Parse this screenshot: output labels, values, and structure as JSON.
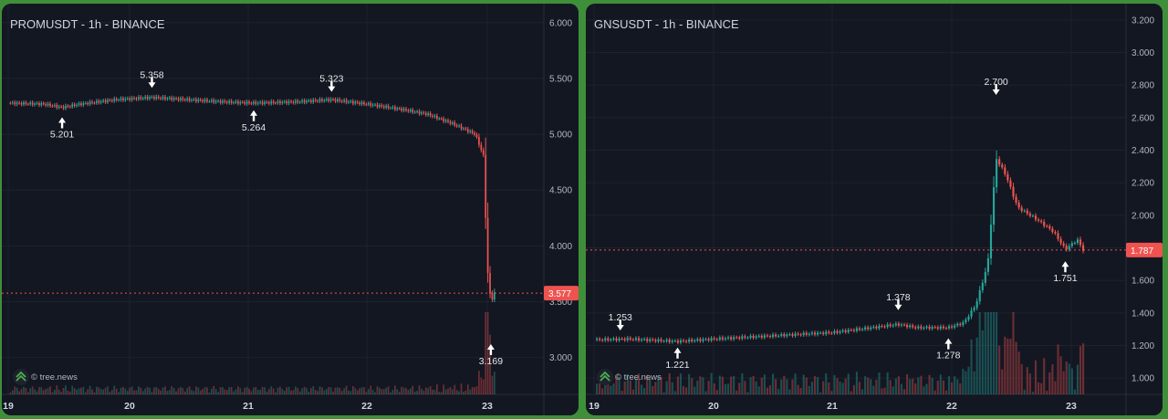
{
  "colors": {
    "up": "#26a69a",
    "down": "#ef5350",
    "background": "#131722",
    "grid": "#1f2330",
    "frame": "#3f8f3a"
  },
  "watermark": "© tree.news",
  "chart_data": [
    {
      "type": "candlestick",
      "title": "PROMUSDT - 1h - BINANCE",
      "ylim": [
        2.67,
        6.17
      ],
      "yticks": [
        "6.000",
        "5.500",
        "5.000",
        "4.500",
        "4.000",
        "3.500",
        "3.000"
      ],
      "xticks": [
        "19",
        "20",
        "21",
        "22",
        "23"
      ],
      "current_price": "3.577",
      "annotations": [
        {
          "text": "5.358",
          "price": 5.358,
          "dir": "high",
          "day": 20.2
        },
        {
          "text": "5.201",
          "price": 5.201,
          "dir": "low",
          "day": 19.45
        },
        {
          "text": "5.264",
          "price": 5.264,
          "dir": "low",
          "day": 21.05
        },
        {
          "text": "5.323",
          "price": 5.323,
          "dir": "high",
          "day": 21.7
        },
        {
          "text": "3.169",
          "price": 3.169,
          "dir": "low",
          "day": 23.03
        }
      ],
      "price_path": [
        [
          19.0,
          5.28
        ],
        [
          19.3,
          5.27
        ],
        [
          19.45,
          5.24
        ],
        [
          19.6,
          5.27
        ],
        [
          19.9,
          5.31
        ],
        [
          20.2,
          5.33
        ],
        [
          20.5,
          5.31
        ],
        [
          20.8,
          5.29
        ],
        [
          21.05,
          5.28
        ],
        [
          21.4,
          5.29
        ],
        [
          21.7,
          5.31
        ],
        [
          22.0,
          5.27
        ],
        [
          22.3,
          5.22
        ],
        [
          22.5,
          5.18
        ],
        [
          22.7,
          5.1
        ],
        [
          22.9,
          5.0
        ],
        [
          22.97,
          4.8
        ],
        [
          23.0,
          3.8
        ],
        [
          23.03,
          3.5
        ],
        [
          23.06,
          3.577
        ]
      ]
    },
    {
      "type": "candlestick",
      "title": "GNSUSDT - 1h - BINANCE",
      "ylim": [
        0.9,
        3.3
      ],
      "yticks": [
        "3.200",
        "3.000",
        "2.800",
        "2.600",
        "2.400",
        "2.200",
        "2.000",
        "1.800",
        "1.600",
        "1.400",
        "1.200",
        "1.000"
      ],
      "xticks": [
        "19",
        "20",
        "21",
        "22",
        "23"
      ],
      "current_price": "1.787",
      "annotations": [
        {
          "text": "2.700",
          "price": 2.7,
          "dir": "high",
          "day": 22.37
        },
        {
          "text": "1.253",
          "price": 1.253,
          "dir": "high",
          "day": 19.22
        },
        {
          "text": "1.221",
          "price": 1.221,
          "dir": "low",
          "day": 19.7
        },
        {
          "text": "1.378",
          "price": 1.378,
          "dir": "high",
          "day": 21.55
        },
        {
          "text": "1.278",
          "price": 1.278,
          "dir": "low",
          "day": 21.97
        },
        {
          "text": "1.751",
          "price": 1.751,
          "dir": "low",
          "day": 22.95
        }
      ],
      "price_path": [
        [
          19.0,
          1.235
        ],
        [
          19.3,
          1.24
        ],
        [
          19.7,
          1.225
        ],
        [
          20.0,
          1.24
        ],
        [
          20.5,
          1.26
        ],
        [
          21.0,
          1.28
        ],
        [
          21.55,
          1.33
        ],
        [
          21.7,
          1.31
        ],
        [
          21.97,
          1.31
        ],
        [
          22.1,
          1.34
        ],
        [
          22.2,
          1.45
        ],
        [
          22.3,
          1.7
        ],
        [
          22.37,
          2.35
        ],
        [
          22.45,
          2.25
        ],
        [
          22.55,
          2.05
        ],
        [
          22.7,
          1.98
        ],
        [
          22.85,
          1.9
        ],
        [
          22.95,
          1.79
        ],
        [
          23.05,
          1.85
        ],
        [
          23.1,
          1.787
        ]
      ]
    }
  ]
}
